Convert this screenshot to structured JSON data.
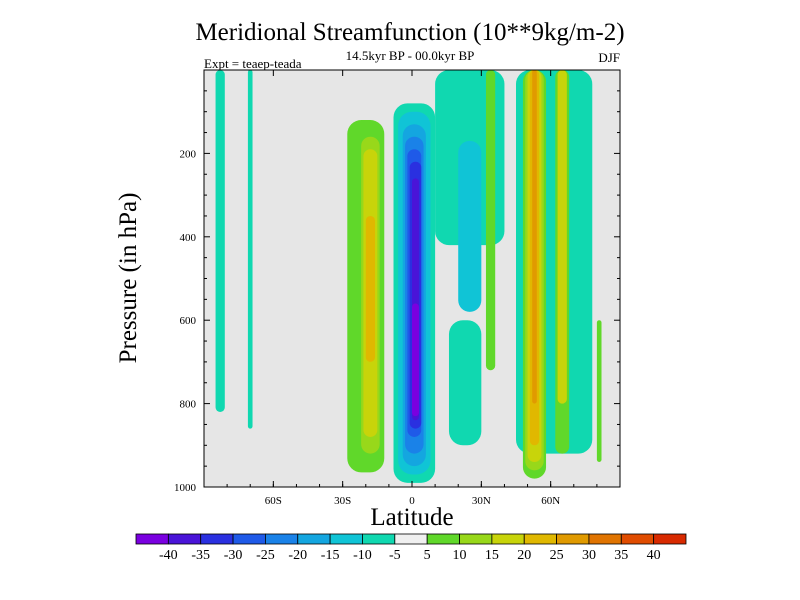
{
  "chart_data": {
    "type": "heatmap",
    "title": "Meridional Streamfunction (10**9kg/m-2)",
    "subtitle": "14.5kyr BP - 00.0kyr BP",
    "expt_label": "Expt = teaep-teada",
    "season": "DJF",
    "xlabel": "Latitude",
    "ylabel": "Pressure (in hPa)",
    "xlim": [
      -90,
      90
    ],
    "ylim": [
      0,
      1000
    ],
    "y_inverted": true,
    "x_ticks": [
      {
        "value": -60,
        "label": "60S"
      },
      {
        "value": -30,
        "label": "30S"
      },
      {
        "value": 0,
        "label": "0"
      },
      {
        "value": 30,
        "label": "30N"
      },
      {
        "value": 60,
        "label": "60N"
      }
    ],
    "y_ticks": [
      {
        "value": 200,
        "label": "200"
      },
      {
        "value": 400,
        "label": "400"
      },
      {
        "value": 600,
        "label": "600"
      },
      {
        "value": 800,
        "label": "800"
      },
      {
        "value": 1000,
        "label": "1000"
      }
    ],
    "background_color": "#e6e6e6",
    "colorbar": {
      "levels": [
        "-40",
        "-35",
        "-30",
        "-25",
        "-20",
        "-15",
        "-10",
        "-5",
        "5",
        "10",
        "15",
        "20",
        "25",
        "30",
        "35",
        "40"
      ],
      "colors": [
        "#7a00e0",
        "#4a14d8",
        "#2a30e0",
        "#1f5ae8",
        "#1a82e8",
        "#14a6e0",
        "#10c4d6",
        "#10d8b0",
        "#f0f0f0",
        "#60d82a",
        "#98d81a",
        "#c8d40a",
        "#e0b800",
        "#e09a00",
        "#e07400",
        "#e04c00",
        "#d82a00"
      ]
    },
    "regions": [
      {
        "bin": 7,
        "lat": [
          -85,
          -81
        ],
        "p": [
          0,
          820
        ]
      },
      {
        "bin": 7,
        "lat": [
          -71,
          -69
        ],
        "p": [
          0,
          860
        ]
      },
      {
        "bin": 9,
        "lat": [
          -28,
          -12
        ],
        "p": [
          120,
          965
        ]
      },
      {
        "bin": 10,
        "lat": [
          -22,
          -14
        ],
        "p": [
          160,
          920
        ]
      },
      {
        "bin": 11,
        "lat": [
          -21,
          -15
        ],
        "p": [
          190,
          880
        ]
      },
      {
        "bin": 12,
        "lat": [
          -20,
          -16
        ],
        "p": [
          350,
          700
        ]
      },
      {
        "bin": 7,
        "lat": [
          -8,
          10
        ],
        "p": [
          80,
          990
        ]
      },
      {
        "bin": 6,
        "lat": [
          -6,
          8
        ],
        "p": [
          100,
          970
        ]
      },
      {
        "bin": 5,
        "lat": [
          -4,
          6
        ],
        "p": [
          130,
          950
        ]
      },
      {
        "bin": 4,
        "lat": [
          -3,
          5
        ],
        "p": [
          160,
          920
        ]
      },
      {
        "bin": 3,
        "lat": [
          -2,
          4
        ],
        "p": [
          190,
          880
        ]
      },
      {
        "bin": 2,
        "lat": [
          -1,
          4
        ],
        "p": [
          220,
          860
        ]
      },
      {
        "bin": 1,
        "lat": [
          0,
          3
        ],
        "p": [
          260,
          840
        ]
      },
      {
        "bin": 0,
        "lat": [
          0,
          3
        ],
        "p": [
          560,
          830
        ]
      },
      {
        "bin": 7,
        "lat": [
          10,
          40
        ],
        "p": [
          0,
          420
        ]
      },
      {
        "bin": 6,
        "lat": [
          20,
          30
        ],
        "p": [
          170,
          580
        ]
      },
      {
        "bin": 7,
        "lat": [
          16,
          30
        ],
        "p": [
          600,
          900
        ]
      },
      {
        "bin": 7,
        "lat": [
          45,
          78
        ],
        "p": [
          0,
          920
        ]
      },
      {
        "bin": 9,
        "lat": [
          32,
          36
        ],
        "p": [
          0,
          720
        ]
      },
      {
        "bin": 9,
        "lat": [
          48,
          58
        ],
        "p": [
          0,
          980
        ]
      },
      {
        "bin": 10,
        "lat": [
          49,
          57
        ],
        "p": [
          0,
          960
        ]
      },
      {
        "bin": 11,
        "lat": [
          50,
          56
        ],
        "p": [
          0,
          940
        ]
      },
      {
        "bin": 12,
        "lat": [
          51,
          55
        ],
        "p": [
          0,
          900
        ]
      },
      {
        "bin": 13,
        "lat": [
          52,
          54
        ],
        "p": [
          0,
          800
        ]
      },
      {
        "bin": 9,
        "lat": [
          62,
          68
        ],
        "p": [
          0,
          920
        ]
      },
      {
        "bin": 11,
        "lat": [
          63,
          67
        ],
        "p": [
          0,
          800
        ]
      },
      {
        "bin": 9,
        "lat": [
          80,
          82
        ],
        "p": [
          600,
          940
        ]
      }
    ]
  }
}
